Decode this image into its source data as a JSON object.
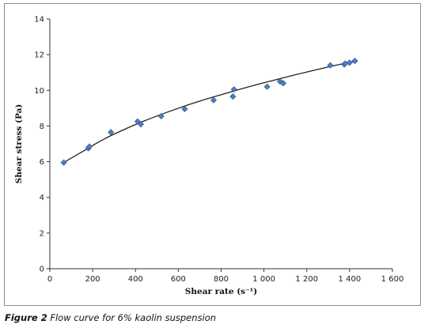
{
  "chart_data": {
    "type": "scatter",
    "title": "",
    "xlabel": "Shear rate (s⁻¹)",
    "ylabel": "Shear stress (Pa)",
    "xlim": [
      0,
      1600
    ],
    "ylim": [
      0,
      14
    ],
    "x_ticks": [
      0,
      200,
      400,
      600,
      800,
      1000,
      1200,
      1400,
      1600
    ],
    "x_tick_labels": [
      "0",
      "200",
      "400",
      "600",
      "800",
      "1 000",
      "1 200",
      "1 400",
      "1 600"
    ],
    "y_ticks": [
      0,
      2,
      4,
      6,
      8,
      10,
      12,
      14
    ],
    "y_tick_labels": [
      "0",
      "2",
      "4",
      "6",
      "8",
      "10",
      "12",
      "14"
    ],
    "grid": false,
    "marker_color": "#4f7fc2",
    "marker_edge_color": "#2b4f8a",
    "series": [
      {
        "x": [
          65,
          180,
          185,
          285,
          410,
          425,
          520,
          630,
          765,
          855,
          860,
          1015,
          1075,
          1090,
          1310,
          1375,
          1380,
          1400,
          1425
        ],
        "y": [
          5.95,
          6.75,
          6.85,
          7.65,
          8.25,
          8.1,
          8.55,
          8.95,
          9.45,
          9.65,
          10.05,
          10.2,
          10.5,
          10.4,
          11.4,
          11.45,
          11.5,
          11.55,
          11.65
        ]
      }
    ],
    "trendline": {
      "x": [
        65,
        150,
        250,
        350,
        450,
        550,
        650,
        750,
        850,
        950,
        1050,
        1150,
        1250,
        1350,
        1425
      ],
      "y": [
        5.95,
        6.55,
        7.25,
        7.82,
        8.33,
        8.78,
        9.2,
        9.58,
        9.93,
        10.27,
        10.58,
        10.88,
        11.17,
        11.44,
        11.63
      ],
      "color": "#222222"
    }
  },
  "caption": {
    "label": "Figure 2",
    "text": " Flow curve for 6% kaolin suspension"
  }
}
